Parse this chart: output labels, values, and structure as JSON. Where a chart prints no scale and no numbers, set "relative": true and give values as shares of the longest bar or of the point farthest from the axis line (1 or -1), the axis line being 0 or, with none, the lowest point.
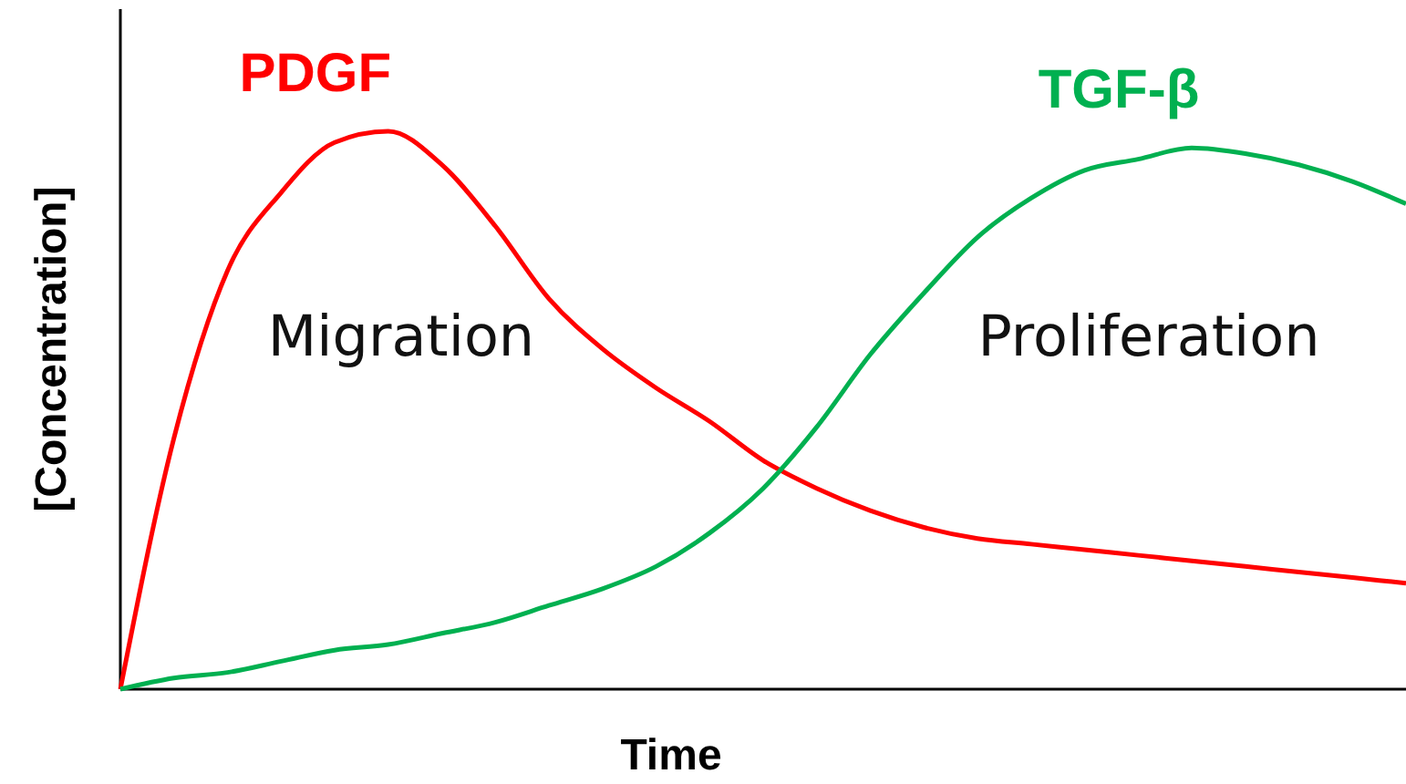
{
  "chart_data": {
    "type": "line",
    "relative": true,
    "xlabel": "Time",
    "ylabel": "[Concentration]",
    "categories": [
      null,
      null,
      null,
      null,
      null,
      null,
      null,
      null,
      null,
      null,
      null,
      null,
      null,
      null,
      null,
      null,
      null,
      null,
      null,
      null,
      null,
      null,
      null,
      null,
      null
    ],
    "series": [
      {
        "name": "PDGF",
        "color": "#ff0000",
        "values": [
          0,
          0.45,
          0.75,
          0.89,
          0.98,
          1,
          0.94,
          0.83,
          0.7,
          0.61,
          0.54,
          0.48,
          0.41,
          0.36,
          0.32,
          0.29,
          0.27,
          0.26,
          0.25,
          0.24,
          0.23,
          0.22,
          0.21,
          0.2,
          0.19
        ]
      },
      {
        "name": "TGF-β",
        "color": "#00b050",
        "values": [
          0,
          0.02,
          0.03,
          0.05,
          0.07,
          0.08,
          0.1,
          0.12,
          0.15,
          0.18,
          0.22,
          0.28,
          0.36,
          0.47,
          0.6,
          0.71,
          0.81,
          0.88,
          0.93,
          0.95,
          0.97,
          0.96,
          0.94,
          0.91,
          0.87
        ]
      }
    ],
    "annotations": [
      "Migration",
      "Proliferation"
    ],
    "marker": "none",
    "line_style": "solid"
  }
}
